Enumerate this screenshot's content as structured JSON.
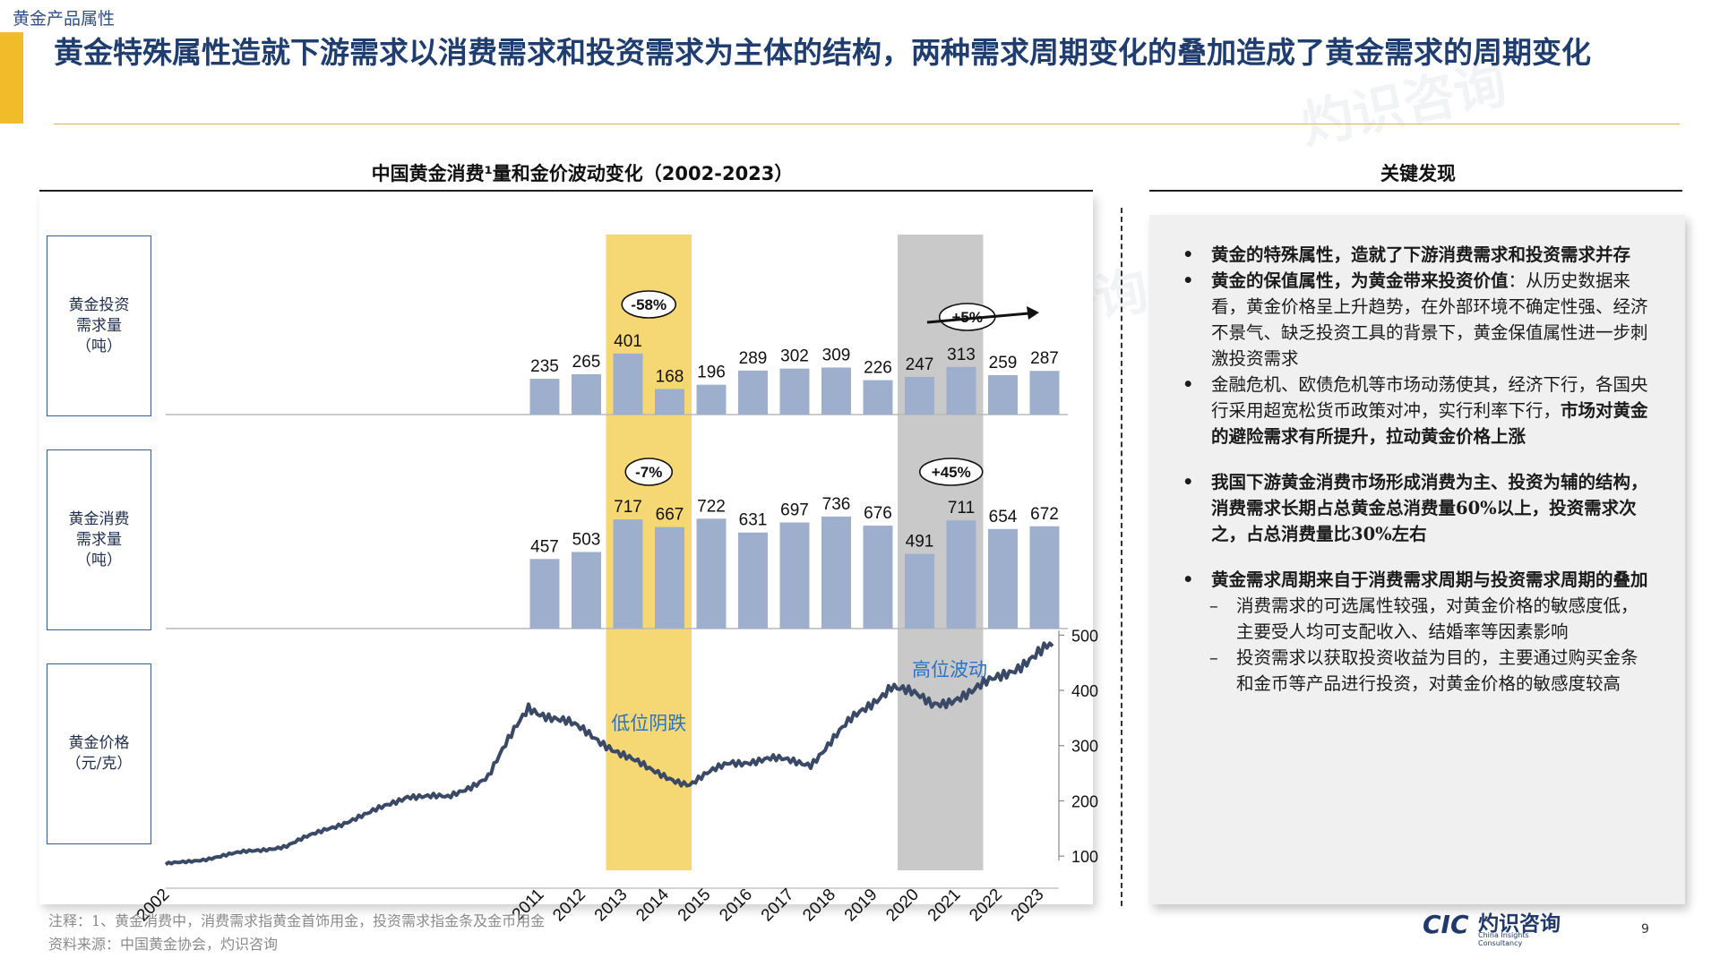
{
  "breadcrumb": "黄金产品属性",
  "title": "黄金特殊属性造就下游需求以消费需求和投资需求为主体的结构，两种需求周期变化的叠加造成了黄金需求的周期变化",
  "chart_title": "中国黄金消费¹量和金价波动变化（2002-2023）",
  "row_labels": {
    "investment": "黄金投资\n需求量\n（吨）",
    "consumption": "黄金消费\n需求量\n（吨）",
    "price": "黄金价格\n（元/克）"
  },
  "chart_data": [
    {
      "type": "bar",
      "name": "黄金投资需求量（吨）",
      "categories": [
        "2011",
        "2012",
        "2013",
        "2014",
        "2015",
        "2016",
        "2017",
        "2018",
        "2019",
        "2020",
        "2021",
        "2022",
        "2023"
      ],
      "values": [
        235,
        265,
        401,
        168,
        196,
        289,
        302,
        309,
        226,
        247,
        313,
        259,
        287
      ]
    },
    {
      "type": "bar",
      "name": "黄金消费需求量（吨）",
      "categories": [
        "2011",
        "2012",
        "2013",
        "2014",
        "2015",
        "2016",
        "2017",
        "2018",
        "2019",
        "2020",
        "2021",
        "2022",
        "2023"
      ],
      "values": [
        457,
        503,
        717,
        667,
        722,
        631,
        697,
        736,
        676,
        491,
        711,
        654,
        672
      ]
    },
    {
      "type": "line",
      "name": "黄金价格（元/克）",
      "x": [
        2002,
        2003,
        2004,
        2005,
        2006,
        2007,
        2008,
        2009,
        2010,
        2011,
        2012,
        2013,
        2014,
        2015,
        2016,
        2017,
        2018,
        2019,
        2020,
        2021,
        2022,
        2023,
        2024
      ],
      "y": [
        85,
        95,
        108,
        118,
        150,
        175,
        210,
        205,
        245,
        370,
        340,
        300,
        255,
        230,
        270,
        275,
        268,
        345,
        410,
        375,
        395,
        440,
        480
      ],
      "ylim": [
        50,
        520
      ],
      "yticks": [
        100,
        200,
        300,
        400,
        500
      ],
      "xtick_labels": [
        "2002",
        "2011",
        "2012",
        "2013",
        "2014",
        "2015",
        "2016",
        "2017",
        "2018",
        "2019",
        "2020",
        "2021",
        "2022",
        "2023"
      ]
    }
  ],
  "annotations": {
    "low_drop": "低位阴跌",
    "high_vol": "高位波动",
    "inv_low_change": "-58%",
    "inv_high_change": "+5%",
    "con_low_change": "-7%",
    "con_high_change": "+45%"
  },
  "colors": {
    "bar": "#9eafcd",
    "line": "#3a4a66",
    "highlight_low": "#f5d774",
    "highlight_high": "#c9c9c9",
    "accent": "#f0bc2a",
    "annotation_text": "#2d72c2"
  },
  "key_findings": {
    "title": "关键发现",
    "p1": "黄金的特殊属性，造就了下游消费需求和投资需求并存",
    "p2_bold": "黄金的保值属性，为黄金带来投资价值",
    "p2_rest": "：从历史数据来看，黄金价格呈上升趋势，在外部环境不确定性强、经济不景气、缺乏投资工具的背景下，黄金保值属性进一步刺激投资需求",
    "p3_rest": "金融危机、欧债危机等市场动荡使其，经济下行，各国央行采用超宽松货币政策对冲，实行利率下行，",
    "p3_bold": "市场对黄金的避险需求有所提升，拉动黄金价格上涨",
    "p4": "我国下游黄金消费市场形成消费为主、投资为辅的结构，消费需求长期占总黄金总消费量60%以上，投资需求次之，占总消费量比30%左右",
    "p5": "黄金需求周期来自于消费需求周期与投资需求周期的叠加",
    "s1": "消费需求的可选属性较强，对黄金价格的敏感度低，主要受人均可支配收入、结婚率等因素影响",
    "s2": "投资需求以获取投资收益为目的，主要通过购买金条和金币等产品进行投资，对黄金价格的敏感度较高"
  },
  "footnotes": {
    "note": "注释：1、黄金消费中，消费需求指黄金首饰用金，投资需求指金条及金币用金",
    "source": "资料来源：中国黄金协会，灼识咨询"
  },
  "logo": {
    "cic": "CIC",
    "cn": "灼识咨询",
    "en": "China Insights Consultancy"
  },
  "page_number": "9"
}
